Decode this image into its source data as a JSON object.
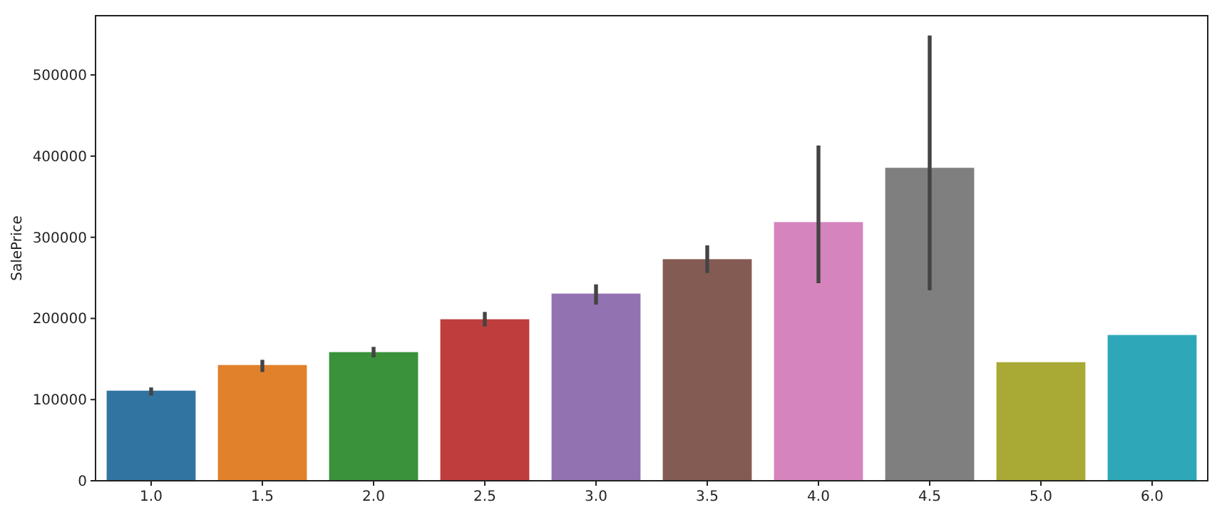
{
  "chart_data": {
    "type": "bar",
    "ylabel": "SalePrice",
    "categories": [
      "1.0",
      "1.5",
      "2.0",
      "2.5",
      "3.0",
      "3.5",
      "4.0",
      "4.5",
      "5.0",
      "6.0"
    ],
    "values": [
      111000,
      142600,
      158500,
      199000,
      230600,
      273000,
      318700,
      385600,
      146100,
      179600
    ],
    "colors": [
      "#3274a1",
      "#e1812c",
      "#3a923a",
      "#c03d3e",
      "#9372b2",
      "#845b53",
      "#d684bd",
      "#7f7f7f",
      "#a9aa35",
      "#2ea8b9"
    ],
    "errors": [
      [
        105000,
        115000
      ],
      [
        134000,
        149000
      ],
      [
        152000,
        165000
      ],
      [
        190000,
        208000
      ],
      [
        217000,
        242000
      ],
      [
        256000,
        290000
      ],
      [
        243500,
        413000
      ],
      [
        234700,
        548700
      ],
      null,
      null
    ],
    "ylim": [
      0,
      573000
    ],
    "yticks": [
      0,
      100000,
      200000,
      300000,
      400000,
      500000
    ],
    "grid": false
  }
}
